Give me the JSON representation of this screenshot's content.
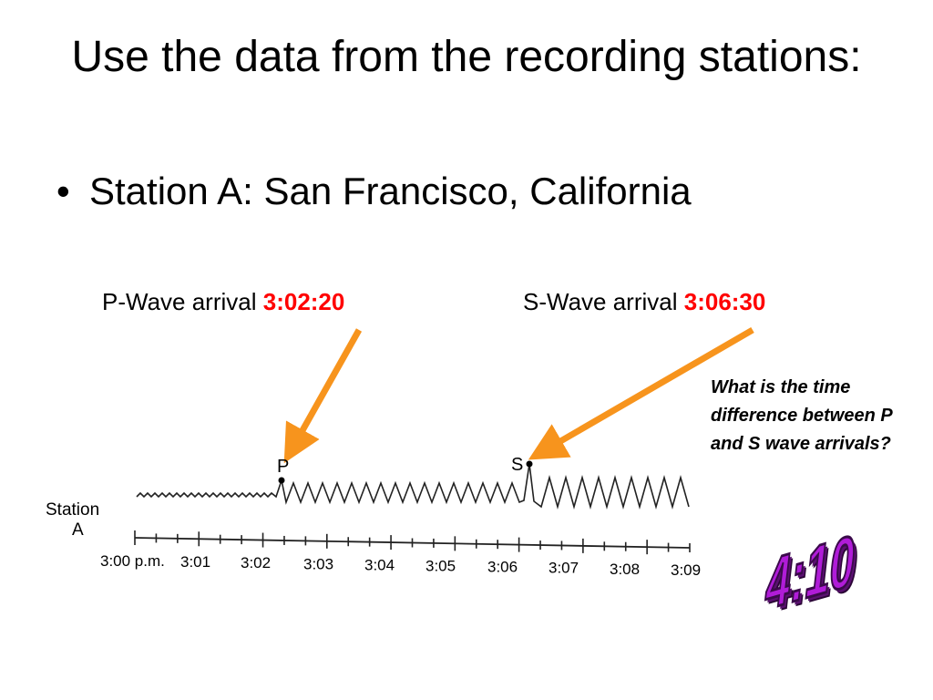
{
  "slide": {
    "title": "Use the data from the recording stations:",
    "bullet": "Station A:   San Francisco, California"
  },
  "p_wave": {
    "label": "P-Wave arrival ",
    "time": "3:02:20"
  },
  "s_wave": {
    "label": "S-Wave arrival ",
    "time": "3:06:30"
  },
  "question": "What is the time difference between P and S wave arrivals?",
  "answer": "4:10",
  "seismogram": {
    "station_label_line1": "Station",
    "station_label_line2": "A",
    "p_marker": "P",
    "s_marker": "S",
    "time_labels": [
      "3:00 p.m.",
      "3:01",
      "3:02",
      "3:03",
      "3:04",
      "3:05",
      "3:06",
      "3:07",
      "3:08",
      "3:09"
    ]
  },
  "colors": {
    "highlight_time": "#ff0000",
    "arrow": "#f7941d",
    "answer": "#b01cd8"
  }
}
